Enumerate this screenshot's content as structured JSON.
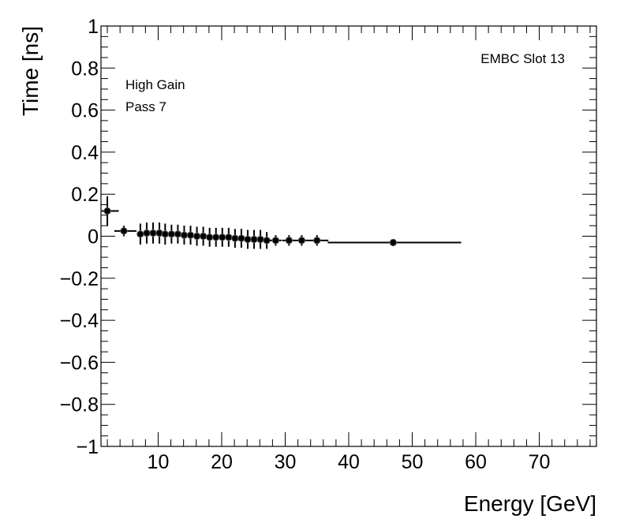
{
  "chart_data": {
    "type": "scatter",
    "title": "",
    "xlabel": "Energy [GeV]",
    "ylabel": "Time [ns]",
    "xlim": [
      1,
      79
    ],
    "ylim": [
      -1,
      1
    ],
    "x_ticks": [
      10,
      20,
      30,
      40,
      50,
      60,
      70
    ],
    "x_tick_labels": [
      "10",
      "20",
      "30",
      "40",
      "50",
      "60",
      "70"
    ],
    "y_ticks": [
      -1,
      -0.8,
      -0.6,
      -0.4,
      -0.2,
      0,
      0.2,
      0.4,
      0.6,
      0.8,
      1
    ],
    "y_tick_labels": [
      "−1",
      "−0.8",
      "−0.6",
      "−0.4",
      "−0.2",
      "0",
      "0.2",
      "0.4",
      "0.6",
      "0.8",
      "1"
    ],
    "grid": false,
    "annotations": {
      "top_right": "EMBC Slot 13",
      "line1": "High Gain",
      "line2": "Pass 7"
    },
    "points": [
      {
        "x": 2.0,
        "y": 0.12,
        "xerr": [
          0.9,
          1.8
        ],
        "yerr": 0.07
      },
      {
        "x": 4.6,
        "y": 0.025,
        "xerr": [
          1.5,
          2.0
        ],
        "yerr": 0.025
      },
      {
        "x": 7.2,
        "y": 0.01,
        "xerr": [
          0.5,
          0.5
        ],
        "yerr": 0.05
      },
      {
        "x": 8.2,
        "y": 0.015,
        "xerr": [
          0.5,
          0.5
        ],
        "yerr": 0.05
      },
      {
        "x": 9.2,
        "y": 0.015,
        "xerr": [
          0.5,
          0.5
        ],
        "yerr": 0.05
      },
      {
        "x": 10.2,
        "y": 0.015,
        "xerr": [
          0.5,
          0.5
        ],
        "yerr": 0.05
      },
      {
        "x": 11.1,
        "y": 0.01,
        "xerr": [
          0.5,
          0.5
        ],
        "yerr": 0.05
      },
      {
        "x": 12.1,
        "y": 0.01,
        "xerr": [
          0.5,
          0.5
        ],
        "yerr": 0.045
      },
      {
        "x": 13.1,
        "y": 0.01,
        "xerr": [
          0.5,
          0.5
        ],
        "yerr": 0.045
      },
      {
        "x": 14.1,
        "y": 0.005,
        "xerr": [
          0.5,
          0.5
        ],
        "yerr": 0.045
      },
      {
        "x": 15.1,
        "y": 0.005,
        "xerr": [
          0.5,
          0.5
        ],
        "yerr": 0.045
      },
      {
        "x": 16.1,
        "y": 0.0,
        "xerr": [
          0.5,
          0.5
        ],
        "yerr": 0.045
      },
      {
        "x": 17.1,
        "y": 0.0,
        "xerr": [
          0.5,
          0.5
        ],
        "yerr": 0.045
      },
      {
        "x": 18.1,
        "y": -0.005,
        "xerr": [
          0.5,
          0.5
        ],
        "yerr": 0.045
      },
      {
        "x": 19.1,
        "y": -0.005,
        "xerr": [
          0.5,
          0.5
        ],
        "yerr": 0.045
      },
      {
        "x": 20.1,
        "y": -0.005,
        "xerr": [
          0.5,
          0.5
        ],
        "yerr": 0.045
      },
      {
        "x": 21.1,
        "y": -0.005,
        "xerr": [
          0.5,
          0.5
        ],
        "yerr": 0.045
      },
      {
        "x": 22.1,
        "y": -0.01,
        "xerr": [
          0.5,
          0.5
        ],
        "yerr": 0.045
      },
      {
        "x": 23.1,
        "y": -0.01,
        "xerr": [
          0.5,
          0.5
        ],
        "yerr": 0.045
      },
      {
        "x": 24.1,
        "y": -0.015,
        "xerr": [
          0.5,
          0.5
        ],
        "yerr": 0.045
      },
      {
        "x": 25.1,
        "y": -0.015,
        "xerr": [
          0.5,
          0.5
        ],
        "yerr": 0.045
      },
      {
        "x": 26.1,
        "y": -0.015,
        "xerr": [
          0.5,
          0.5
        ],
        "yerr": 0.045
      },
      {
        "x": 27.1,
        "y": -0.02,
        "xerr": [
          0.5,
          0.5
        ],
        "yerr": 0.04
      },
      {
        "x": 28.5,
        "y": -0.02,
        "xerr": [
          0.9,
          0.9
        ],
        "yerr": 0.025
      },
      {
        "x": 30.6,
        "y": -0.02,
        "xerr": [
          1.1,
          1.1
        ],
        "yerr": 0.025
      },
      {
        "x": 32.6,
        "y": -0.02,
        "xerr": [
          1.0,
          1.0
        ],
        "yerr": 0.025
      },
      {
        "x": 35.0,
        "y": -0.02,
        "xerr": [
          1.4,
          1.8
        ],
        "yerr": 0.025
      },
      {
        "x": 47.0,
        "y": -0.03,
        "xerr": [
          10.3,
          10.7
        ],
        "yerr": 0.012
      }
    ]
  }
}
